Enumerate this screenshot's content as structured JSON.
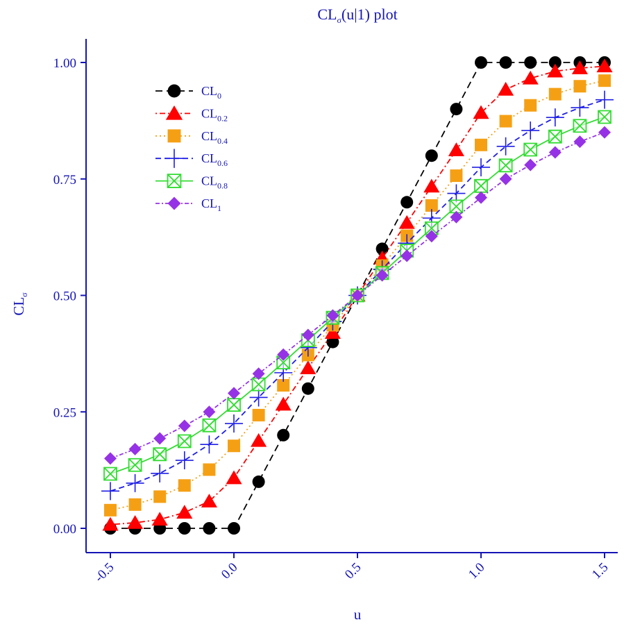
{
  "chart_data": {
    "type": "line",
    "title": "CLσ(u|1)  plot",
    "title_main": "CL",
    "title_sub": "σ",
    "title_rest": "(u|1)  plot",
    "xlabel": "u",
    "ylabel_main": "CL",
    "ylabel_sub": "σ",
    "xlim": [
      -0.55,
      1.55
    ],
    "ylim": [
      -0.05,
      1.05
    ],
    "xticks": [
      -0.5,
      0.0,
      0.5,
      1.0,
      1.5
    ],
    "xtick_labels": [
      "-0.5",
      "0.0",
      "0.5",
      "1.0",
      "1.5"
    ],
    "yticks": [
      0.0,
      0.25,
      0.5,
      0.75,
      1.0
    ],
    "ytick_labels": [
      "0.00",
      "0.25",
      "0.50",
      "0.75",
      "1.00"
    ],
    "legend_placement": "top-left",
    "grid": false,
    "x": [
      -0.5,
      -0.4,
      -0.3,
      -0.2,
      -0.1,
      0.0,
      0.1,
      0.2,
      0.3,
      0.4,
      0.5,
      0.6,
      0.7,
      0.8,
      0.9,
      1.0,
      1.1,
      1.2,
      1.3,
      1.4,
      1.5
    ],
    "series": [
      {
        "name": "CL0",
        "name_main": "CL",
        "name_sub": "0",
        "color": "#000000",
        "marker": "circle",
        "dash": "10,6",
        "values": [
          0,
          0,
          0,
          0,
          0,
          0,
          0.1,
          0.2,
          0.3,
          0.4,
          0.5,
          0.6,
          0.7,
          0.8,
          0.9,
          1.0,
          1.0,
          1.0,
          1.0,
          1.0,
          1.0
        ]
      },
      {
        "name": "CL0.2",
        "name_main": "CL",
        "name_sub": "0.2",
        "color": "#ff0000",
        "marker": "triangle",
        "dash": "2,4,8,4",
        "values": [
          0.008,
          0.012,
          0.019,
          0.034,
          0.058,
          0.108,
          0.188,
          0.266,
          0.344,
          0.42,
          0.5,
          0.58,
          0.656,
          0.734,
          0.812,
          0.892,
          0.942,
          0.966,
          0.981,
          0.988,
          0.992
        ]
      },
      {
        "name": "CL0.4",
        "name_main": "CL",
        "name_sub": "0.4",
        "color": "#f5a014",
        "marker": "square",
        "dash": "2,4",
        "values": [
          0.039,
          0.051,
          0.068,
          0.092,
          0.126,
          0.177,
          0.243,
          0.307,
          0.372,
          0.436,
          0.5,
          0.564,
          0.628,
          0.693,
          0.757,
          0.823,
          0.874,
          0.908,
          0.932,
          0.949,
          0.961
        ]
      },
      {
        "name": "CL0.6",
        "name_main": "CL",
        "name_sub": "0.6",
        "color": "#1e1ee6",
        "marker": "plus",
        "dash": "8,5",
        "values": [
          0.08,
          0.097,
          0.118,
          0.146,
          0.18,
          0.225,
          0.281,
          0.334,
          0.388,
          0.444,
          0.5,
          0.556,
          0.612,
          0.666,
          0.719,
          0.775,
          0.82,
          0.854,
          0.882,
          0.903,
          0.92
        ]
      },
      {
        "name": "CL0.8",
        "name_main": "CL",
        "name_sub": "0.8",
        "color": "#32dc32",
        "marker": "boxx",
        "dash": "",
        "values": [
          0.117,
          0.136,
          0.159,
          0.187,
          0.221,
          0.265,
          0.309,
          0.356,
          0.404,
          0.452,
          0.5,
          0.548,
          0.596,
          0.644,
          0.691,
          0.735,
          0.779,
          0.813,
          0.841,
          0.864,
          0.883
        ]
      },
      {
        "name": "CL1",
        "name_main": "CL",
        "name_sub": "1",
        "color": "#9632e6",
        "marker": "diamond",
        "dash": "6,3,2,3",
        "values": [
          0.15,
          0.17,
          0.193,
          0.22,
          0.25,
          0.29,
          0.332,
          0.373,
          0.415,
          0.457,
          0.5,
          0.543,
          0.585,
          0.627,
          0.668,
          0.71,
          0.75,
          0.78,
          0.807,
          0.83,
          0.85
        ]
      }
    ]
  }
}
